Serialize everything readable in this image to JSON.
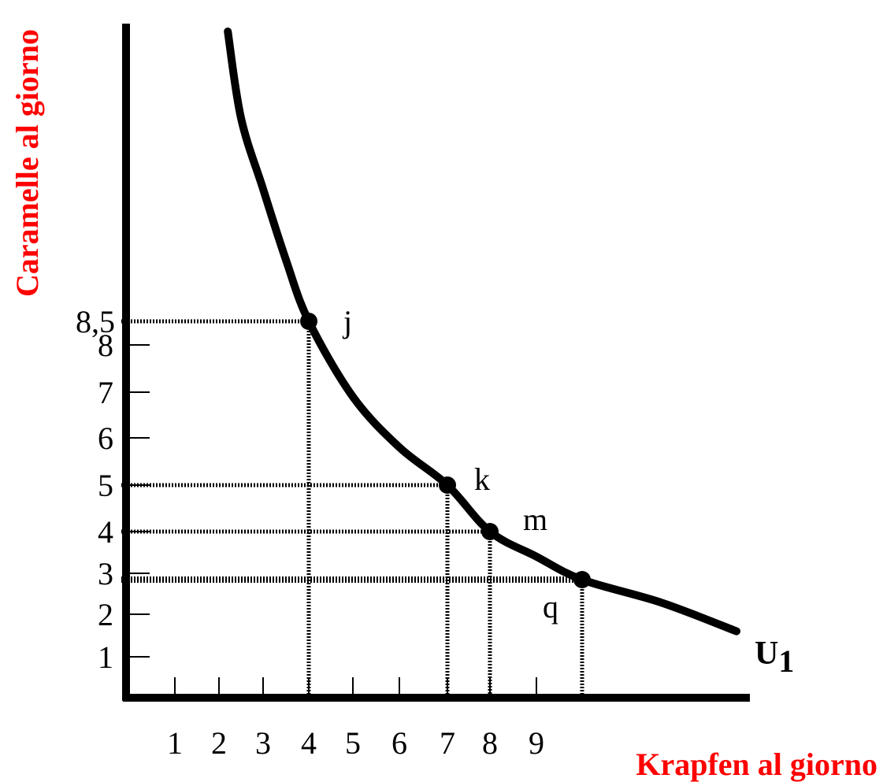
{
  "chart_data": {
    "type": "line",
    "xlabel": "Krapfen al giorno",
    "ylabel": "Caramelle al giorno",
    "axis_title_color": "#ff0000",
    "curve_label": "U",
    "curve_label_sub": "1",
    "xticks": [
      "1",
      "2",
      "3",
      "4",
      "5",
      "6",
      "7",
      "8",
      "9"
    ],
    "yticks": [
      "1",
      "2",
      "3",
      "4",
      "5",
      "6",
      "7",
      "8",
      "8,5"
    ],
    "points": [
      {
        "label": "j",
        "x": 4,
        "y": 8.5
      },
      {
        "label": "k",
        "x": 7,
        "y": 5
      },
      {
        "label": "m",
        "x": 8,
        "y": 4
      },
      {
        "label": "q",
        "x": 10,
        "y": 2.9
      }
    ],
    "series": [
      {
        "name": "U1",
        "x": [
          2.2,
          2.5,
          3,
          3.5,
          4,
          5,
          6,
          7,
          8,
          9,
          10,
          11,
          12.3
        ],
        "y": [
          15.4,
          13.2,
          11.0,
          9.6,
          8.5,
          6.9,
          5.8,
          5.0,
          4.0,
          3.4,
          2.9,
          2.3,
          1.6
        ]
      }
    ]
  }
}
